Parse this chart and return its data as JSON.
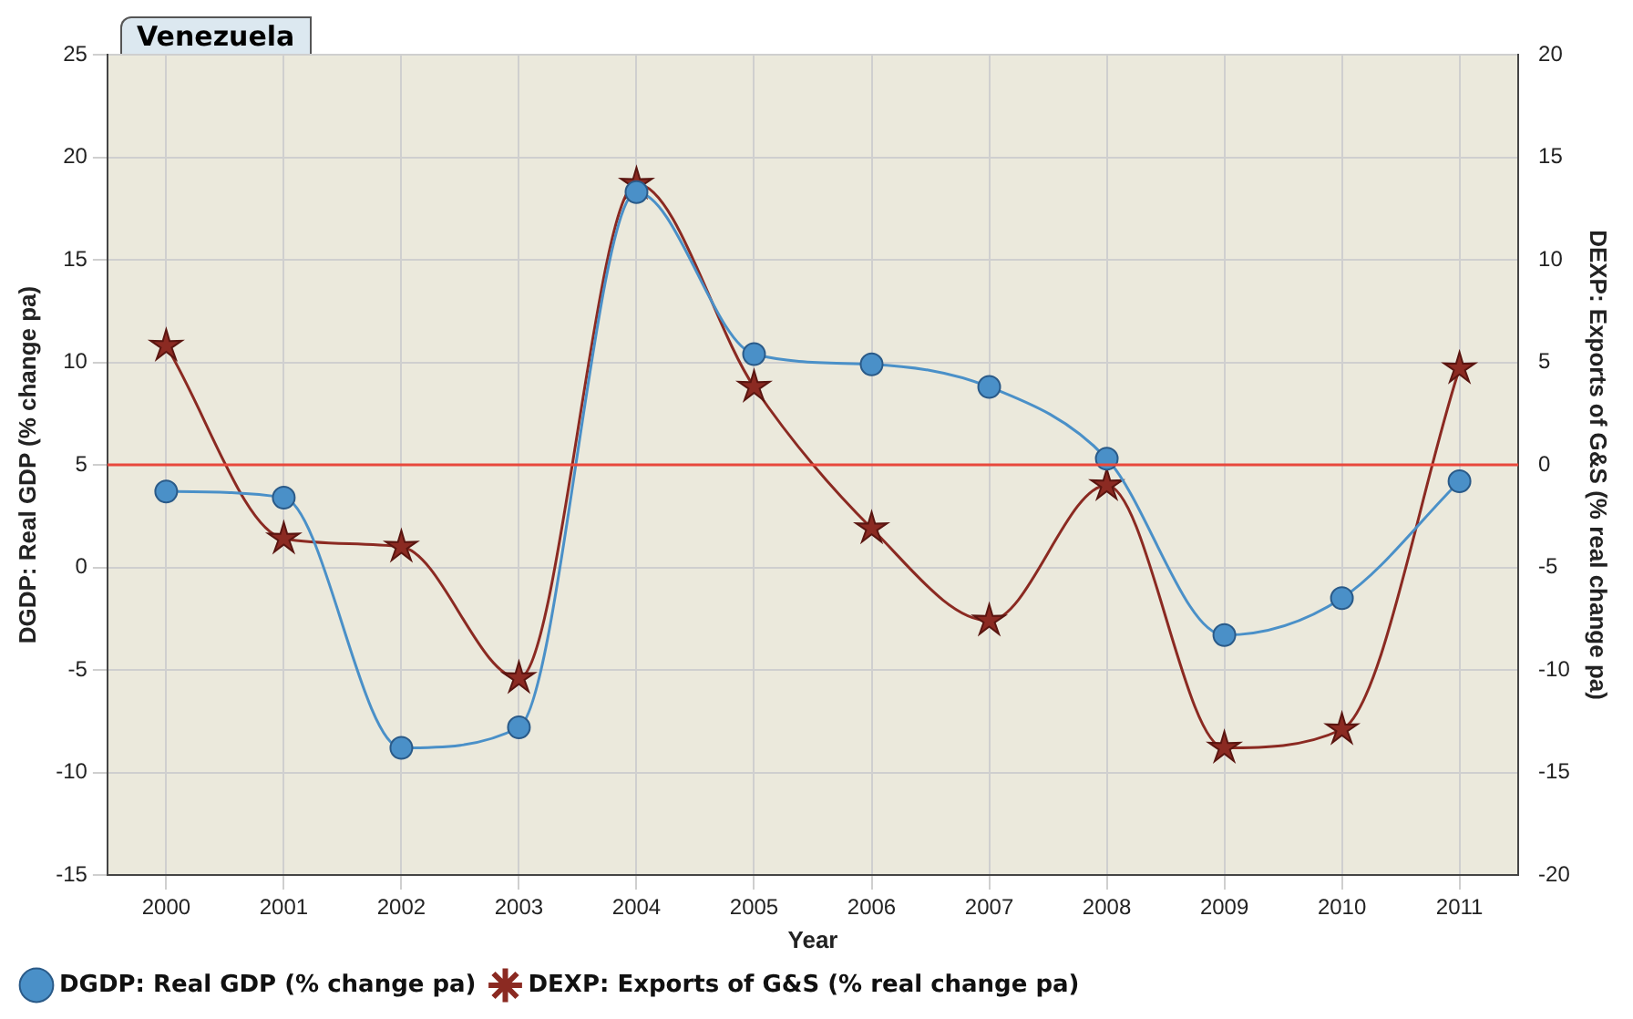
{
  "chart_data": {
    "type": "line",
    "title": "Venezuela",
    "xlabel": "Year",
    "ylabel": "DGDP: Real GDP (% change pa)",
    "y2label": "DEXP: Exports of G&S (% real change pa)",
    "categories": [
      "2000",
      "2001",
      "2002",
      "2003",
      "2004",
      "2005",
      "2006",
      "2007",
      "2008",
      "2009",
      "2010",
      "2011"
    ],
    "series": [
      {
        "name": "DGDP: Real GDP (% change pa)",
        "color": "#4a90c8",
        "marker": "circle",
        "values": [
          3.7,
          3.4,
          -8.8,
          -7.8,
          18.3,
          10.4,
          9.9,
          8.8,
          5.3,
          -3.3,
          -1.5,
          4.2
        ]
      },
      {
        "name": "DEXP: Exports of G&S (% real change pa)",
        "color": "#8b2a22",
        "marker": "star",
        "axis": "y2",
        "values": [
          5.8,
          -3.6,
          -4.0,
          -10.4,
          13.7,
          3.8,
          -3.1,
          -7.6,
          -1.0,
          -13.8,
          -12.9,
          4.7
        ]
      }
    ],
    "ylim": [
      -15,
      25
    ],
    "yticks": [
      -15,
      -10,
      -5,
      0,
      5,
      10,
      15,
      20,
      25
    ],
    "y2lim": [
      -20,
      20
    ],
    "y2ticks": [
      -20,
      -15,
      -10,
      -5,
      0,
      5,
      10,
      15,
      20
    ],
    "ref_lines": [
      {
        "axis": "y2",
        "value": 0,
        "color": "#e8483c"
      }
    ],
    "grid": true,
    "legend": "bottom"
  }
}
